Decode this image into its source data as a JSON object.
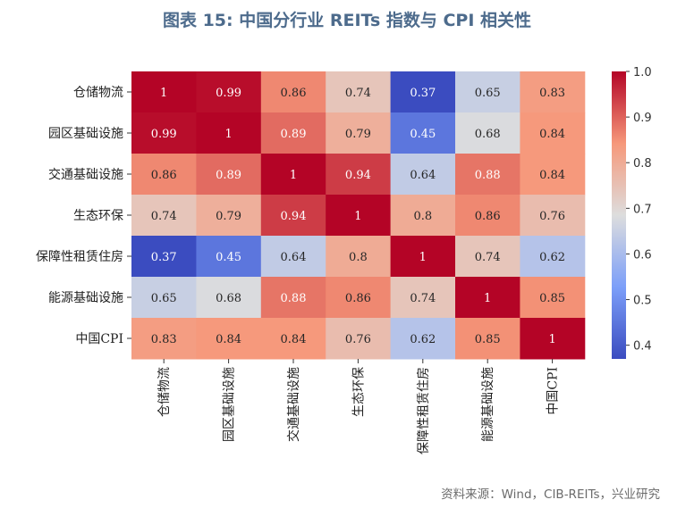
{
  "title": "图表 15: 中国分行业 REITs 指数与 CPI 相关性",
  "source": "资料来源：Wind，CIB-REITs，兴业研究",
  "chart_data": {
    "type": "heatmap",
    "title": "图表 15: 中国分行业 REITs 指数与 CPI 相关性",
    "row_labels": [
      "仓储物流",
      "园区基础设施",
      "交通基础设施",
      "生态环保",
      "保障性租赁住房",
      "能源基础设施",
      "中国CPI"
    ],
    "col_labels": [
      "仓储物流",
      "园区基础设施",
      "交通基础设施",
      "生态环保",
      "保障性租赁住房",
      "能源基础设施",
      "中国CPI"
    ],
    "values": [
      [
        1,
        0.99,
        0.86,
        0.74,
        0.37,
        0.65,
        0.83
      ],
      [
        0.99,
        1,
        0.89,
        0.79,
        0.45,
        0.68,
        0.84
      ],
      [
        0.86,
        0.89,
        1,
        0.94,
        0.64,
        0.88,
        0.84
      ],
      [
        0.74,
        0.79,
        0.94,
        1,
        0.8,
        0.86,
        0.76
      ],
      [
        0.37,
        0.45,
        0.64,
        0.8,
        1,
        0.74,
        0.62
      ],
      [
        0.65,
        0.68,
        0.88,
        0.86,
        0.74,
        1,
        0.85
      ],
      [
        0.83,
        0.84,
        0.84,
        0.76,
        0.62,
        0.85,
        1
      ]
    ],
    "colorbar": {
      "min": 0.37,
      "max": 1.0,
      "ticks": [
        "1.0",
        "0.9",
        "0.8",
        "0.7",
        "0.6",
        "0.5",
        "0.4"
      ],
      "colormap": "coolwarm"
    }
  }
}
